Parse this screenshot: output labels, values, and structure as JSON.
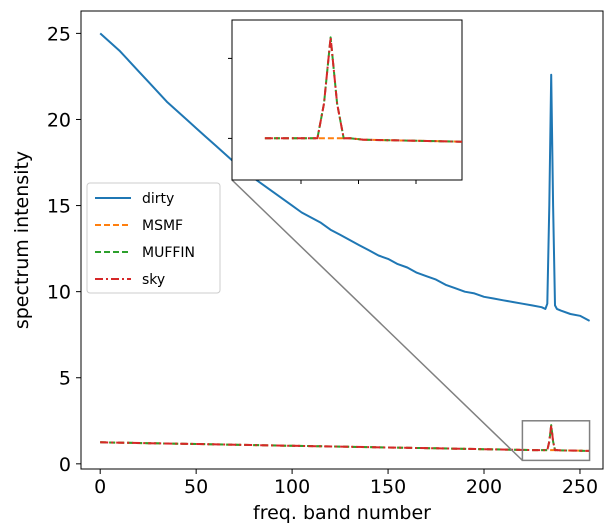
{
  "chart_data": {
    "type": "line",
    "xlabel": "freq. band number",
    "ylabel": "spectrum intensity",
    "xlim": [
      -10,
      262
    ],
    "ylim": [
      -0.3,
      26.3
    ],
    "xticks": [
      0,
      50,
      100,
      150,
      200,
      250
    ],
    "yticks": [
      0,
      5,
      10,
      15,
      20,
      25
    ],
    "grid": false,
    "legend_position": "center-left",
    "series": [
      {
        "name": "dirty",
        "color": "#1f77b4",
        "dash": "solid",
        "x": [
          0,
          5,
          10,
          15,
          20,
          25,
          30,
          35,
          40,
          45,
          50,
          55,
          60,
          65,
          70,
          75,
          80,
          85,
          90,
          95,
          100,
          105,
          110,
          115,
          120,
          125,
          130,
          135,
          140,
          145,
          150,
          155,
          160,
          165,
          170,
          175,
          180,
          185,
          190,
          195,
          200,
          205,
          210,
          215,
          220,
          225,
          230,
          232,
          233,
          234,
          235,
          236,
          237,
          238,
          240,
          245,
          250,
          255
        ],
        "values": [
          25.0,
          24.5,
          24.0,
          23.4,
          22.8,
          22.2,
          21.6,
          21.0,
          20.5,
          20.0,
          19.5,
          19.0,
          18.5,
          18.0,
          17.5,
          17.0,
          16.6,
          16.2,
          15.8,
          15.4,
          15.0,
          14.6,
          14.3,
          14.0,
          13.6,
          13.3,
          13.0,
          12.7,
          12.4,
          12.1,
          11.9,
          11.6,
          11.4,
          11.1,
          10.9,
          10.7,
          10.4,
          10.2,
          10.0,
          9.9,
          9.7,
          9.6,
          9.5,
          9.4,
          9.3,
          9.2,
          9.1,
          9.0,
          9.3,
          15.0,
          22.6,
          15.0,
          9.2,
          9.0,
          8.9,
          8.7,
          8.6,
          8.3
        ]
      },
      {
        "name": "MSMF",
        "color": "#ff7f0e",
        "dash": "dashed",
        "x": [
          0,
          25,
          50,
          75,
          100,
          125,
          150,
          175,
          200,
          225,
          232,
          233,
          234,
          235,
          236,
          237,
          238,
          240,
          255
        ],
        "values": [
          1.25,
          1.2,
          1.15,
          1.1,
          1.05,
          1.0,
          0.95,
          0.9,
          0.85,
          0.8,
          0.8,
          0.8,
          0.8,
          0.8,
          0.8,
          0.8,
          0.8,
          0.78,
          0.75
        ]
      },
      {
        "name": "MUFFIN",
        "color": "#2ca02c",
        "dash": "dashed",
        "x": [
          0,
          25,
          50,
          75,
          100,
          125,
          150,
          175,
          200,
          225,
          232,
          233,
          234,
          235,
          236,
          237,
          238,
          240,
          255
        ],
        "values": [
          1.25,
          1.2,
          1.15,
          1.1,
          1.05,
          1.0,
          0.95,
          0.9,
          0.85,
          0.8,
          0.8,
          0.8,
          1.3,
          2.25,
          1.3,
          0.8,
          0.8,
          0.78,
          0.75
        ]
      },
      {
        "name": "sky",
        "color": "#d62728",
        "dash": "dashdot",
        "x": [
          0,
          25,
          50,
          75,
          100,
          125,
          150,
          175,
          200,
          225,
          232,
          233,
          234,
          235,
          236,
          237,
          238,
          240,
          255
        ],
        "values": [
          1.25,
          1.2,
          1.15,
          1.1,
          1.05,
          1.0,
          0.95,
          0.9,
          0.85,
          0.8,
          0.8,
          0.8,
          1.3,
          2.25,
          1.3,
          0.8,
          0.8,
          0.78,
          0.75
        ]
      }
    ],
    "inset": {
      "xlim": [
        220,
        255
      ],
      "ylim": [
        0.2,
        2.5
      ]
    }
  }
}
